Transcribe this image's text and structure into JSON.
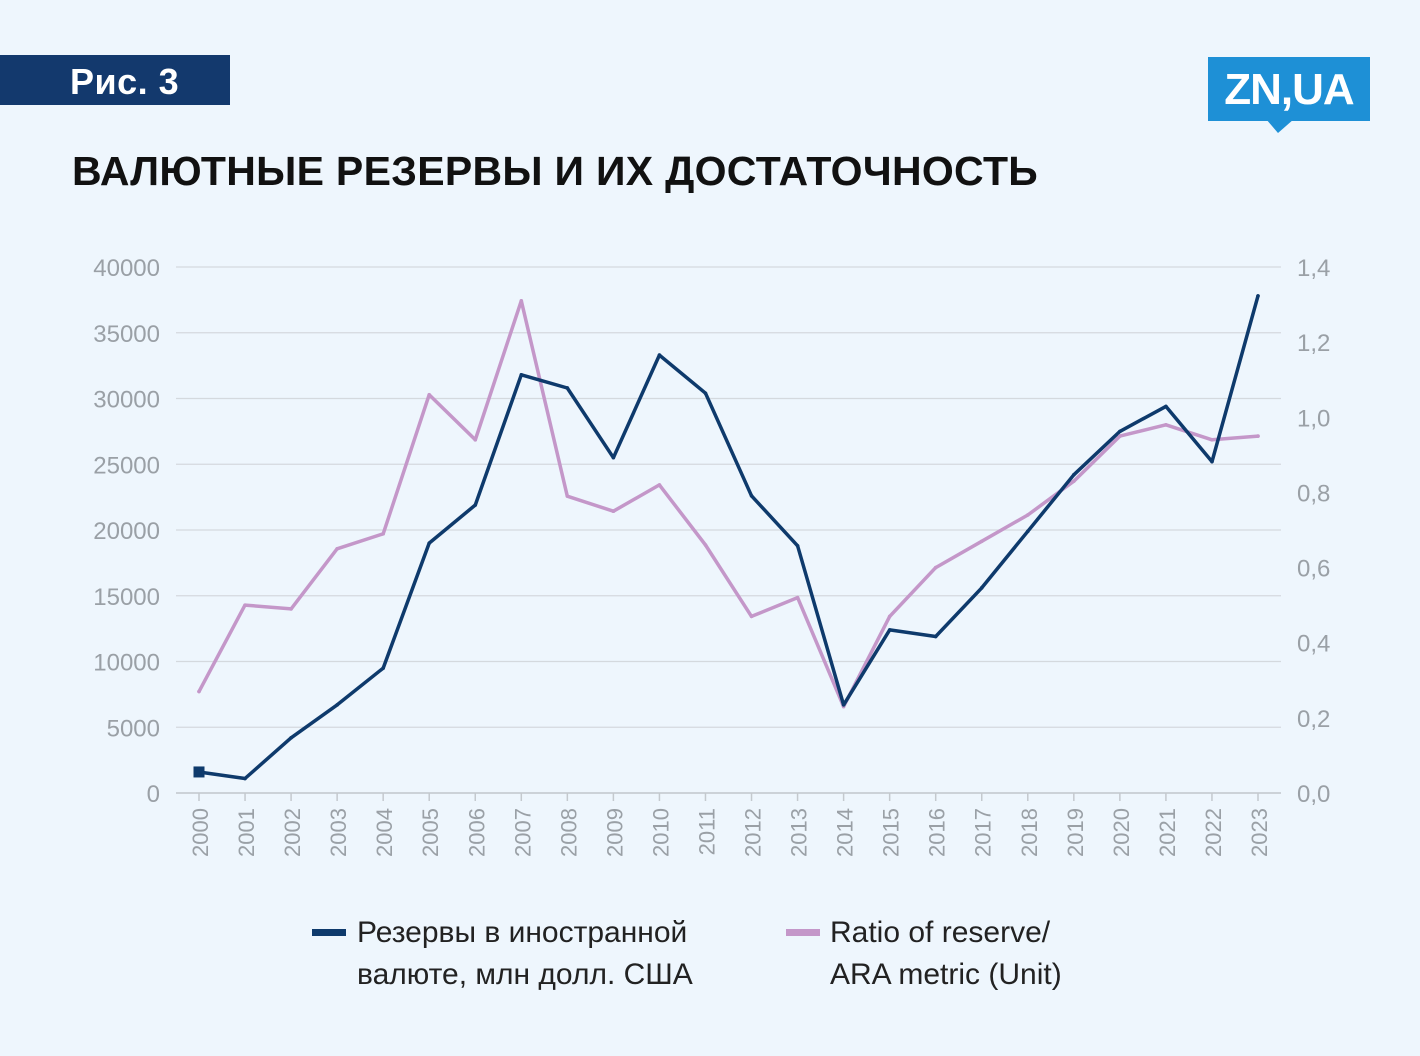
{
  "header": {
    "figure_label": "Рис. 3",
    "logo_text": "ZN,UA",
    "title": "ВАЛЮТНЫЕ РЕЗЕРВЫ И ИХ ДОСТАТОЧНОСТЬ"
  },
  "colors": {
    "background": "#eef6fd",
    "badge": "#13396d",
    "logo": "#1e90d6",
    "reserves_line": "#0e3a6c",
    "ratio_line": "#c497c9",
    "grid": "#d4d9de",
    "tick_text": "#9aa0a6"
  },
  "legend": [
    {
      "line1": "Резервы в иностранной",
      "line2": "валюте, млн долл. США"
    },
    {
      "line1": "Ratio of reserve/",
      "line2": "ARA metric  (Unit)"
    }
  ],
  "chart_data": {
    "type": "line",
    "categories": [
      "2000",
      "2001",
      "2002",
      "2003",
      "2004",
      "2005",
      "2006",
      "2007",
      "2008",
      "2009",
      "2010",
      "2011",
      "2012",
      "2013",
      "2014",
      "2015",
      "2016",
      "2017",
      "2018",
      "2019",
      "2020",
      "2021",
      "2022",
      "2023"
    ],
    "series": [
      {
        "name": "Резервы в иностранной валюте, млн долл. США",
        "axis": "left",
        "values": [
          1600,
          1100,
          4200,
          6700,
          9500,
          19000,
          21900,
          31800,
          30800,
          25500,
          33300,
          30400,
          22600,
          18800,
          6700,
          12400,
          11900,
          15600,
          19900,
          24200,
          27500,
          29400,
          25200,
          37800
        ]
      },
      {
        "name": "Ratio of reserve/ ARA metric  (Unit)",
        "axis": "right",
        "values": [
          0.27,
          0.5,
          0.49,
          0.65,
          0.69,
          1.06,
          0.94,
          1.31,
          0.79,
          0.75,
          0.82,
          0.66,
          0.47,
          0.52,
          0.23,
          0.47,
          0.6,
          0.67,
          0.74,
          0.83,
          0.95,
          0.98,
          0.94,
          0.95
        ]
      }
    ],
    "y_left": {
      "ylim": [
        0,
        40000
      ],
      "ticks": [
        "0",
        "5000",
        "10000",
        "15000",
        "20000",
        "25000",
        "30000",
        "35000",
        "40000"
      ]
    },
    "y_right": {
      "ylim": [
        0,
        1.4
      ],
      "ticks": [
        "0,0",
        "0,2",
        "0,4",
        "0,6",
        "0,8",
        "1,0",
        "1,2",
        "1,4"
      ]
    },
    "grid": true,
    "legend_position": "bottom"
  }
}
